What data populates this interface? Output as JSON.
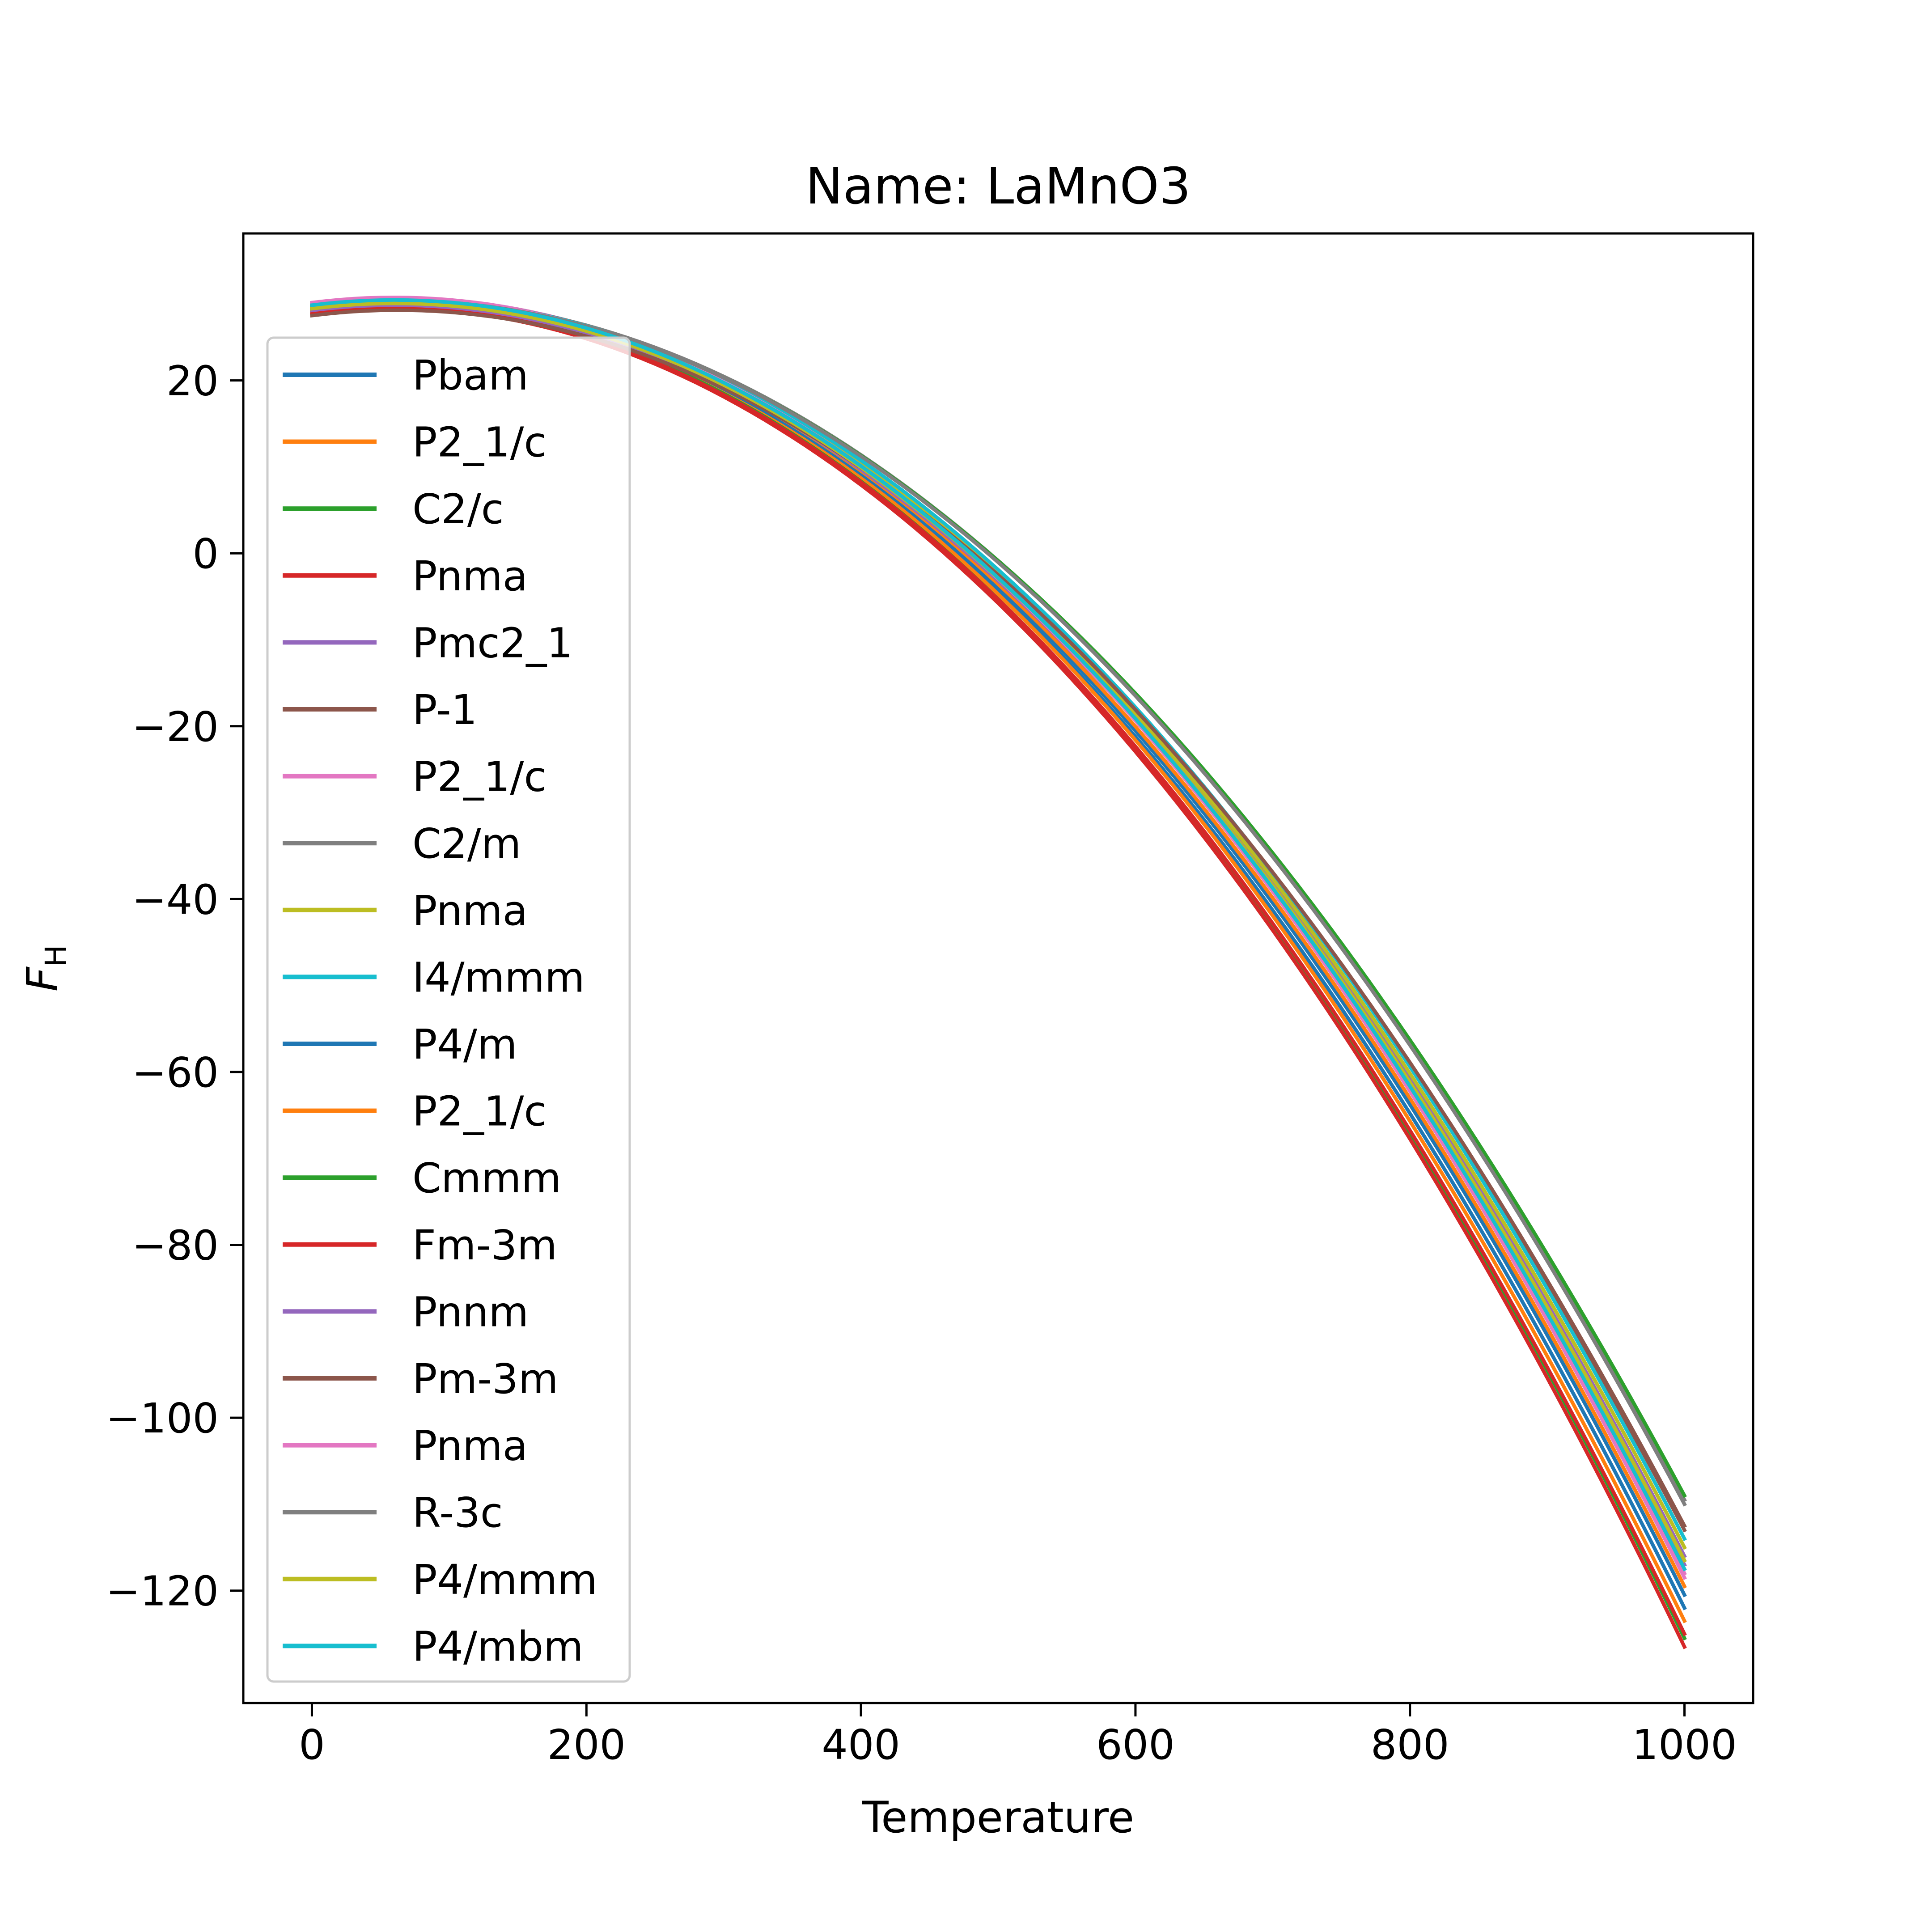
{
  "chart_data": {
    "type": "line",
    "title": "Name: LaMnO3",
    "xlabel": "Temperature",
    "ylabel_main": "F",
    "ylabel_sub": "H",
    "xlim": [
      -50,
      1050
    ],
    "ylim": [
      -133,
      37
    ],
    "xticks": [
      0,
      200,
      400,
      600,
      800,
      1000
    ],
    "xtick_labels": [
      "0",
      "200",
      "400",
      "600",
      "800",
      "1000"
    ],
    "yticks": [
      20,
      0,
      -20,
      -40,
      -60,
      -80,
      -100,
      -120
    ],
    "ytick_labels": [
      "20",
      "0",
      "−20",
      "−40",
      "−60",
      "−80",
      "−100",
      "−120"
    ],
    "grid": false,
    "legend_position": "upper-left",
    "x": [
      0,
      50,
      100,
      150,
      200,
      250,
      300,
      350,
      400,
      450,
      500,
      550,
      600,
      650,
      700,
      750,
      800,
      850,
      900,
      950,
      1000
    ],
    "series": [
      {
        "name": "Pbam",
        "color": "#1f77b4",
        "y0": 28.0,
        "yend": -122.0
      },
      {
        "name": "P2_1/c",
        "color": "#ff7f0e",
        "y0": 28.2,
        "yend": -123.5
      },
      {
        "name": "C2/c",
        "color": "#2ca02c",
        "y0": 28.1,
        "yend": -125.5
      },
      {
        "name": "Pnma",
        "color": "#d62728",
        "y0": 27.8,
        "yend": -126.5
      },
      {
        "name": "Pmc2_1",
        "color": "#9467bd",
        "y0": 28.3,
        "yend": -116.0
      },
      {
        "name": "P-1",
        "color": "#8c564b",
        "y0": 27.6,
        "yend": -113.0
      },
      {
        "name": "P2_1/c",
        "color": "#e377c2",
        "y0": 29.0,
        "yend": -118.0
      },
      {
        "name": "C2/m",
        "color": "#7f7f7f",
        "y0": 28.7,
        "yend": -109.5
      },
      {
        "name": "Pnma",
        "color": "#bcbd22",
        "y0": 28.4,
        "yend": -115.0
      },
      {
        "name": "I4/mmm",
        "color": "#17becf",
        "y0": 28.8,
        "yend": -114.0
      },
      {
        "name": "P4/m",
        "color": "#1f77b4",
        "y0": 28.2,
        "yend": -120.5
      },
      {
        "name": "P2_1/c",
        "color": "#ff7f0e",
        "y0": 28.4,
        "yend": -119.5
      },
      {
        "name": "Cmmm",
        "color": "#2ca02c",
        "y0": 28.5,
        "yend": -109.0
      },
      {
        "name": "Fm-3m",
        "color": "#d62728",
        "y0": 27.9,
        "yend": -125.0
      },
      {
        "name": "Pnnm",
        "color": "#9467bd",
        "y0": 28.1,
        "yend": -117.0
      },
      {
        "name": "Pm-3m",
        "color": "#8c564b",
        "y0": 27.5,
        "yend": -112.5
      },
      {
        "name": "Pnma",
        "color": "#e377c2",
        "y0": 28.9,
        "yend": -118.5
      },
      {
        "name": "R-3c",
        "color": "#7f7f7f",
        "y0": 28.6,
        "yend": -110.0
      },
      {
        "name": "P4/mmm",
        "color": "#bcbd22",
        "y0": 28.3,
        "yend": -116.5
      },
      {
        "name": "P4/mbm",
        "color": "#17becf",
        "y0": 28.7,
        "yend": -117.5
      }
    ]
  }
}
